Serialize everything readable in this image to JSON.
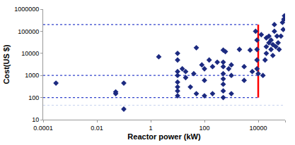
{
  "chart_data": {
    "type": "scatter",
    "x_label": "Reactor power (kW)",
    "y_label": "Cost(US $)",
    "log": true,
    "grid": false,
    "marker": "diamond",
    "color": "#1c2a80",
    "xlim": [
      0.0001,
      100000
    ],
    "xticks": [
      0.0001,
      0.01,
      1,
      100,
      10000,
      100000
    ],
    "ylim": [
      10,
      1000000
    ],
    "yticks": [
      10,
      100,
      1000,
      10000,
      100000,
      1000000
    ],
    "x": [
      0.0003,
      0.05,
      0.05,
      0.1,
      0.1,
      2,
      10,
      10,
      10,
      10,
      10,
      10,
      10,
      10,
      15,
      20,
      20,
      30,
      40,
      50,
      50,
      80,
      100,
      100,
      100,
      150,
      200,
      200,
      300,
      500,
      500,
      500,
      500,
      500,
      500,
      500,
      500,
      600,
      800,
      1000,
      1000,
      1000,
      2000,
      3000,
      3000,
      5000,
      6000,
      8000,
      9000,
      9000,
      9000,
      9000,
      10000,
      13000,
      15000,
      18000,
      20000,
      20000,
      20000,
      25000,
      25000,
      30000,
      30000,
      35000,
      35000,
      40000,
      40000,
      45000,
      50000,
      55000,
      60000,
      80000,
      90000,
      95000,
      85000,
      70000
    ],
    "values": [
      450,
      180,
      150,
      450,
      30,
      7000,
      10000,
      5000,
      1500,
      1000,
      500,
      300,
      120,
      200,
      2000,
      1500,
      800,
      300,
      1200,
      150,
      18000,
      3000,
      2000,
      600,
      120,
      5000,
      2500,
      150,
      4000,
      14000,
      4000,
      2500,
      1200,
      700,
      400,
      200,
      100,
      12000,
      2000,
      3000,
      1000,
      150,
      15000,
      2500,
      600,
      14000,
      1500,
      100000,
      40000,
      15000,
      5000,
      2000,
      1200,
      70000,
      1000,
      5000,
      50000,
      20000,
      10000,
      60000,
      30000,
      40000,
      15000,
      25000,
      8000,
      200000,
      100000,
      20000,
      60000,
      30000,
      15000,
      250000,
      350000,
      500000,
      120000,
      60000
    ],
    "reference_lines": [
      {
        "y": 200000,
        "x": [
          0.0001,
          10000
        ],
        "color": "#3344cc",
        "line_style": "dot"
      },
      {
        "y": 1000,
        "x": [
          0.0001,
          10000
        ],
        "color": "#3344cc",
        "line_style": "dot"
      },
      {
        "y": 100,
        "x": [
          0.0001,
          10000
        ],
        "color": "#3344cc",
        "line_style": "dot"
      },
      {
        "y": 45,
        "x": [
          0.0001,
          100000
        ],
        "color": "#c8d4ee",
        "line_style": "dot"
      },
      {
        "x": 10000,
        "y": [
          100,
          200000
        ],
        "color": "#ff0000",
        "line_style": "solid"
      }
    ]
  }
}
